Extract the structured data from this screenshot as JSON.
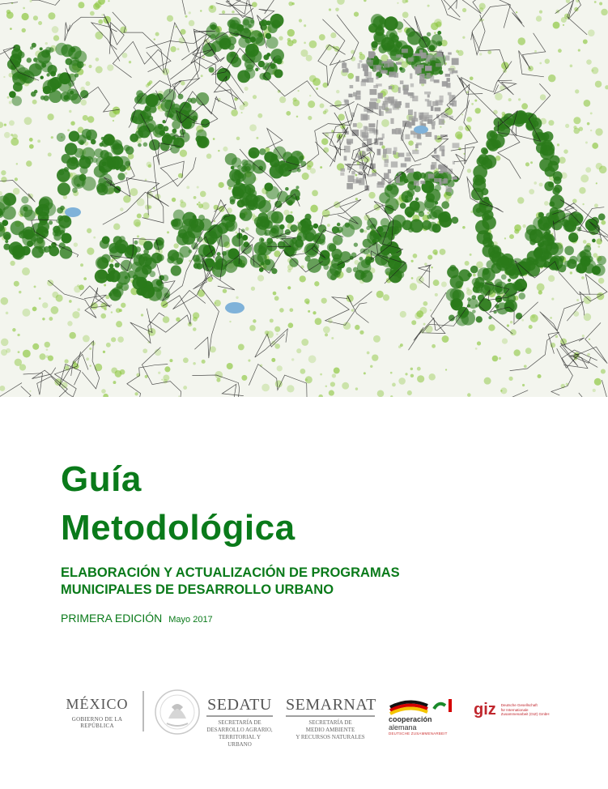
{
  "cover": {
    "title_line1": "Guía",
    "title_line2": "Metodológica",
    "subtitle_line1": "ELABORACIÓN Y ACTUALIZACIÓN DE PROGRAMAS",
    "subtitle_line2": "MUNICIPALES DE DESARROLLO URBANO",
    "edition": "PRIMERA EDICIÓN",
    "date": "Mayo 2017"
  },
  "logos": {
    "mexico": {
      "name": "MÉXICO",
      "subtitle": "GOBIERNO DE LA REPÚBLICA"
    },
    "sedatu": {
      "name": "SEDATU",
      "desc_line1": "SECRETARÍA DE",
      "desc_line2": "DESARROLLO AGRARIO,",
      "desc_line3": "TERRITORIAL Y URBANO"
    },
    "semarnat": {
      "name": "SEMARNAT",
      "desc_line1": "SECRETARÍA DE",
      "desc_line2": "MEDIO AMBIENTE",
      "desc_line3": "Y RECURSOS NATURALES"
    },
    "cooperacion": {
      "line1": "cooperación",
      "line2": "alemana",
      "line3": "DEUTSCHE ZUSAMMENARBEIT"
    },
    "giz": {
      "mark": "giz",
      "line1": "Deutsche Gesellschaft",
      "line2": "für Internationale",
      "line3": "Zusammenarbeit (GIZ) GmbH"
    }
  },
  "colors": {
    "title_green": "#0a7a1a",
    "forest_dark": "#2a7a1a",
    "forest_light": "#8cc63f",
    "urban_gray": "#9a9a9a",
    "water_blue": "#7fb2d9"
  }
}
